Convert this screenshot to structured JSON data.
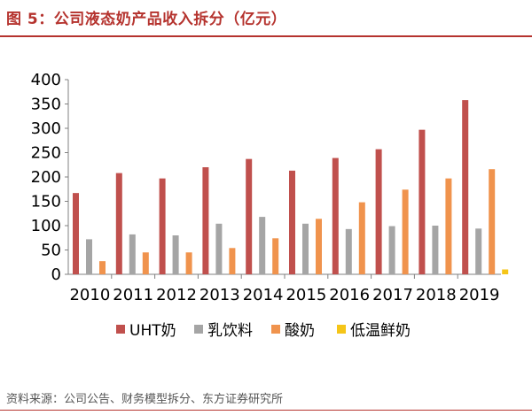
{
  "header": {
    "title": "图 5：公司液态奶产品收入拆分（亿元）"
  },
  "footer": {
    "source": "资料来源：公司公告、财务模型拆分、东方证券研究所"
  },
  "colors": {
    "accent": "#b5332e",
    "series": [
      "#c0504d",
      "#a5a5a5",
      "#f0934d",
      "#f5c518"
    ]
  },
  "chart_data": {
    "type": "bar",
    "title": "图 5：公司液态奶产品收入拆分（亿元）",
    "categories": [
      "2010",
      "2011",
      "2012",
      "2013",
      "2014",
      "2015",
      "2016",
      "2017",
      "2018",
      "2019"
    ],
    "series": [
      {
        "name": "UHT奶",
        "values": [
          167,
          208,
          197,
          220,
          237,
          213,
          239,
          257,
          297,
          358
        ]
      },
      {
        "name": "乳饮料",
        "values": [
          72,
          82,
          80,
          104,
          118,
          104,
          93,
          99,
          100,
          94
        ]
      },
      {
        "name": "酸奶",
        "values": [
          27,
          45,
          45,
          54,
          74,
          114,
          148,
          174,
          197,
          216
        ]
      },
      {
        "name": "低温鲜奶",
        "values": [
          0,
          0,
          0,
          0,
          0,
          0,
          0,
          0,
          0,
          10
        ]
      }
    ],
    "yticks": [
      0,
      50,
      100,
      150,
      200,
      250,
      300,
      350,
      400
    ],
    "ylim": [
      0,
      400
    ],
    "grid": false,
    "legend_position": "bottom"
  }
}
